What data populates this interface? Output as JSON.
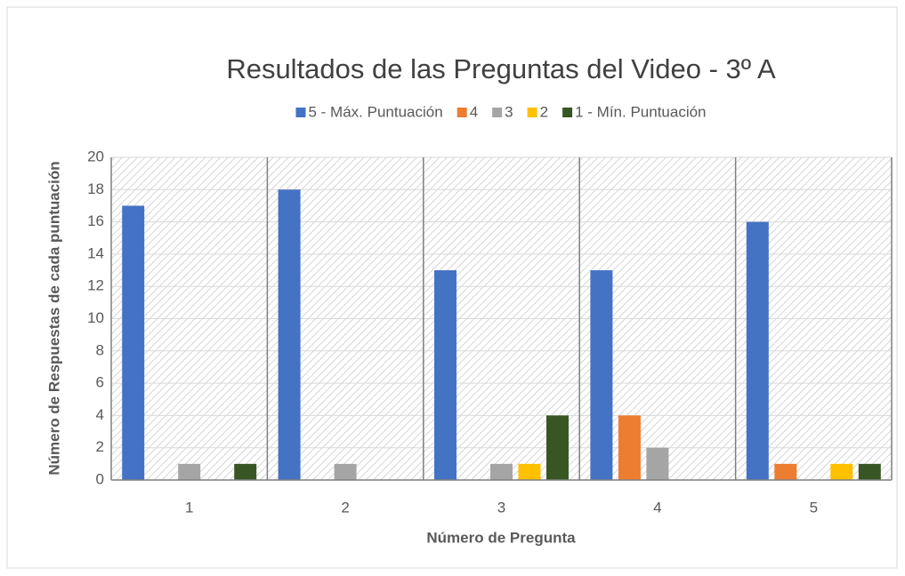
{
  "chart_data": {
    "type": "bar",
    "title": "Resultados de las Preguntas del Video - 3º A",
    "x_label": "Número de Pregunta",
    "y_label": "Número de Respuestas de cada puntuación",
    "categories": [
      "1",
      "2",
      "3",
      "4",
      "5"
    ],
    "series": [
      {
        "name": "5 - Máx. Puntuación",
        "color": "#4472c4",
        "values": [
          17,
          18,
          13,
          13,
          16
        ]
      },
      {
        "name": "4",
        "color": "#ed7d31",
        "values": [
          0,
          0,
          0,
          4,
          1
        ]
      },
      {
        "name": "3",
        "color": "#a5a5a5",
        "values": [
          1,
          1,
          1,
          2,
          0
        ]
      },
      {
        "name": "2",
        "color": "#ffc000",
        "values": [
          0,
          0,
          1,
          0,
          1
        ]
      },
      {
        "name": "1 - Mín. Puntuación",
        "color": "#375623",
        "values": [
          1,
          0,
          4,
          0,
          1
        ]
      }
    ],
    "ylim": [
      0,
      20
    ],
    "yticks": [
      0,
      2,
      4,
      6,
      8,
      10,
      12,
      14,
      16,
      18,
      20
    ],
    "grid": true,
    "legend": "top"
  }
}
